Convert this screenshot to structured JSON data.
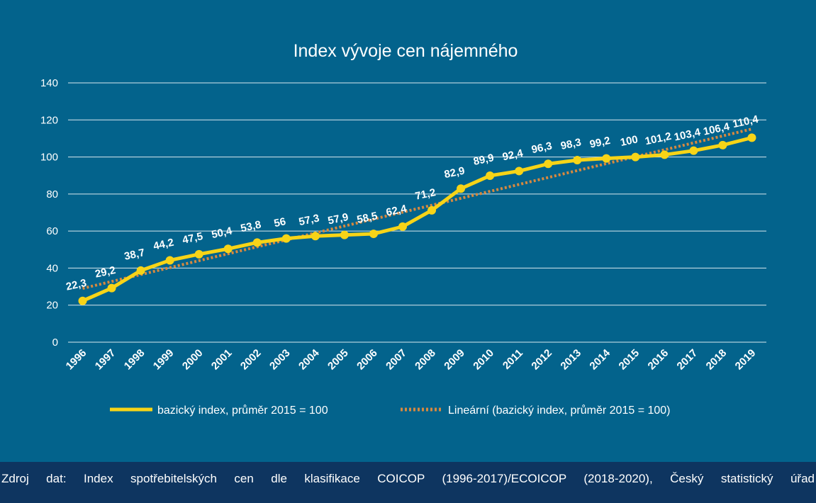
{
  "chart_data": {
    "type": "line",
    "title": "Index vývoje cen nájemného",
    "xlabel": "",
    "ylabel": "",
    "categories": [
      "1996",
      "1997",
      "1998",
      "1999",
      "2000",
      "2001",
      "2002",
      "2003",
      "2004",
      "2005",
      "2006",
      "2007",
      "2008",
      "2009",
      "2010",
      "2011",
      "2012",
      "2013",
      "2014",
      "2015",
      "2016",
      "2017",
      "2018",
      "2019"
    ],
    "series": [
      {
        "name": "bazický index, průměr 2015 = 100",
        "values": [
          22.3,
          29.2,
          38.7,
          44.2,
          47.5,
          50.4,
          53.8,
          56,
          57.3,
          57.9,
          58.5,
          62.4,
          71.2,
          82.9,
          89.9,
          92.4,
          96.3,
          98.3,
          99.2,
          100,
          101.2,
          103.4,
          106.4,
          110.4
        ],
        "labels": [
          "22,3",
          "29,2",
          "38,7",
          "44,2",
          "47,5",
          "50,4",
          "53,8",
          "56",
          "57,3",
          "57,9",
          "58,5",
          "62,4",
          "71,2",
          "82,9",
          "89,9",
          "92,4",
          "96,3",
          "98,3",
          "99,2",
          "100",
          "101,2",
          "103,4",
          "106,4",
          "110,4"
        ],
        "color": "#f7d417"
      },
      {
        "name": "Lineární (bazický index, průměr 2015 = 100)",
        "type": "linear-trend",
        "color": "#d7893f"
      }
    ],
    "yticks": [
      "0",
      "20",
      "40",
      "60",
      "80",
      "100",
      "120",
      "140"
    ],
    "ylim": [
      0,
      140
    ],
    "grid": true,
    "legend_position": "bottom"
  },
  "source": {
    "text": "Zdroj dat: Index spotřebitelských cen dle klasifikace COICOP (1996-2017)/ECOICOP (2018-2020), Český statistický úřad"
  },
  "colors": {
    "background": "#03638c",
    "footer": "#0e3560",
    "line": "#f7d417",
    "trend": "#d7893f"
  }
}
